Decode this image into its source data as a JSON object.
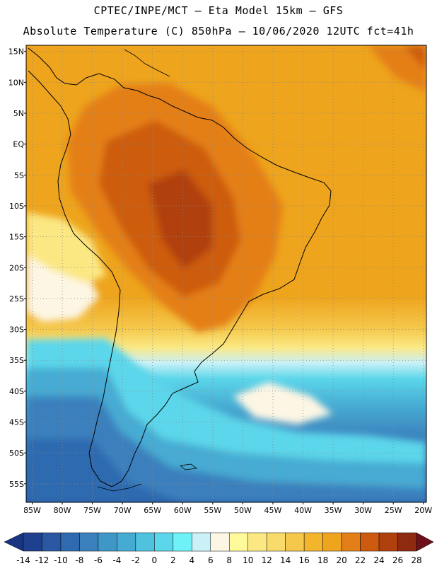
{
  "header": {
    "line1": "CPTEC/INPE/MCT –  Eta Model 15km – GFS",
    "line2": "Absolute Temperature (C) 850hPa – 10/06/2020 12UTC fct=41h"
  },
  "map": {
    "lat_range": [
      -58,
      16
    ],
    "lon_range": [
      -86,
      -19.5
    ],
    "lat_ticks": [
      {
        "value": 15,
        "label": "15N"
      },
      {
        "value": 10,
        "label": "10N"
      },
      {
        "value": 5,
        "label": "5N"
      },
      {
        "value": 0,
        "label": "EQ"
      },
      {
        "value": -5,
        "label": "5S"
      },
      {
        "value": -10,
        "label": "10S"
      },
      {
        "value": -15,
        "label": "15S"
      },
      {
        "value": -20,
        "label": "20S"
      },
      {
        "value": -25,
        "label": "25S"
      },
      {
        "value": -30,
        "label": "30S"
      },
      {
        "value": -35,
        "label": "35S"
      },
      {
        "value": -40,
        "label": "40S"
      },
      {
        "value": -45,
        "label": "45S"
      },
      {
        "value": -50,
        "label": "50S"
      },
      {
        "value": -55,
        "label": "55S"
      }
    ],
    "lon_ticks": [
      {
        "value": -85,
        "label": "85W"
      },
      {
        "value": -80,
        "label": "80W"
      },
      {
        "value": -75,
        "label": "75W"
      },
      {
        "value": -70,
        "label": "70W"
      },
      {
        "value": -65,
        "label": "65W"
      },
      {
        "value": -60,
        "label": "60W"
      },
      {
        "value": -55,
        "label": "55W"
      },
      {
        "value": -50,
        "label": "50W"
      },
      {
        "value": -45,
        "label": "45W"
      },
      {
        "value": -40,
        "label": "40W"
      },
      {
        "value": -35,
        "label": "35W"
      },
      {
        "value": -30,
        "label": "30W"
      },
      {
        "value": -25,
        "label": "25W"
      },
      {
        "value": -20,
        "label": "20W"
      }
    ],
    "grid": "dotted",
    "field": "temperature 850 hPa"
  },
  "colorbar": {
    "units": "C",
    "labels": [
      "-14",
      "-12",
      "-10",
      "-8",
      "-6",
      "-4",
      "-2",
      "0",
      "2",
      "4",
      "6",
      "8",
      "10",
      "12",
      "14",
      "16",
      "18",
      "20",
      "22",
      "24",
      "26",
      "28"
    ],
    "bins": [
      {
        "lo": -14,
        "hi": -12,
        "color": "#1f3f8f"
      },
      {
        "lo": -12,
        "hi": -10,
        "color": "#2a58a3"
      },
      {
        "lo": -10,
        "hi": -8,
        "color": "#2f6ab0"
      },
      {
        "lo": -8,
        "hi": -6,
        "color": "#3a80bd"
      },
      {
        "lo": -6,
        "hi": -4,
        "color": "#3f97c7"
      },
      {
        "lo": -4,
        "hi": -2,
        "color": "#46abd3"
      },
      {
        "lo": -2,
        "hi": 0,
        "color": "#4fc2df"
      },
      {
        "lo": 0,
        "hi": 2,
        "color": "#5bd6ea"
      },
      {
        "lo": 2,
        "hi": 4,
        "color": "#6ef2f7"
      },
      {
        "lo": 4,
        "hi": 6,
        "color": "#c9f1f7"
      },
      {
        "lo": 6,
        "hi": 8,
        "color": "#fdf6e4"
      },
      {
        "lo": 8,
        "hi": 10,
        "color": "#fefa9c"
      },
      {
        "lo": 10,
        "hi": 12,
        "color": "#fbe883"
      },
      {
        "lo": 12,
        "hi": 14,
        "color": "#f9db6c"
      },
      {
        "lo": 14,
        "hi": 16,
        "color": "#f5c84b"
      },
      {
        "lo": 16,
        "hi": 18,
        "color": "#f2b52c"
      },
      {
        "lo": 18,
        "hi": 20,
        "color": "#eea41d"
      },
      {
        "lo": 20,
        "hi": 22,
        "color": "#e47f18"
      },
      {
        "lo": 22,
        "hi": 24,
        "color": "#cd5b0f"
      },
      {
        "lo": 24,
        "hi": 26,
        "color": "#b0400d"
      },
      {
        "lo": 26,
        "hi": 28,
        "color": "#8e2a10"
      }
    ],
    "under_color": "#1a3580",
    "over_color": "#6e0f1c"
  }
}
